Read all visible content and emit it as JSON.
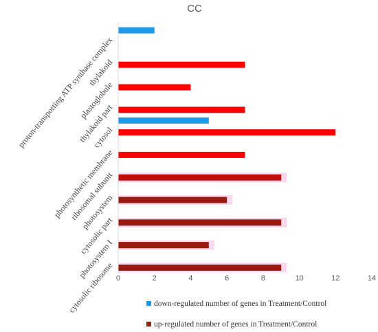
{
  "chart_data": {
    "type": "bar",
    "orientation": "horizontal",
    "title": "CC",
    "xlabel": "",
    "ylabel": "",
    "xlim": [
      0,
      14
    ],
    "xticks": [
      0,
      2,
      4,
      6,
      8,
      10,
      12,
      14
    ],
    "grid": false,
    "legend_position": "bottom",
    "categories": [
      "proton-transporting ATP synthase complex",
      "thylakoid",
      "plastoglobule",
      "thylakoid part",
      "cytosol",
      "photosynthetic membrane",
      "ribosomal subunit",
      "photosystem",
      "cytosolic part",
      "photosystem I",
      "cytosolic ribosome"
    ],
    "series": [
      {
        "name": "down-regulated number of genes in Treatment/Control",
        "color": "#1e9be8",
        "values": [
          2,
          0,
          0,
          0,
          5,
          0,
          0,
          0,
          0,
          0,
          0
        ]
      },
      {
        "name": "up-regulated number of genes in Treatment/Control",
        "color": "#ff0000",
        "values": [
          0,
          7,
          4,
          7,
          12,
          7,
          9,
          6,
          9,
          5,
          9
        ]
      }
    ],
    "up_bar_colors": [
      "#ff0000",
      "#ff0000",
      "#ff0000",
      "#ff0000",
      "#ff0000",
      "#ff0000",
      "#c00f0f",
      "#9a1a10",
      "#9a1a10",
      "#9a1a10",
      "#9a1a10"
    ],
    "legend_up_color": "#8b2a12",
    "highlight_color": "#f9d8ef"
  }
}
